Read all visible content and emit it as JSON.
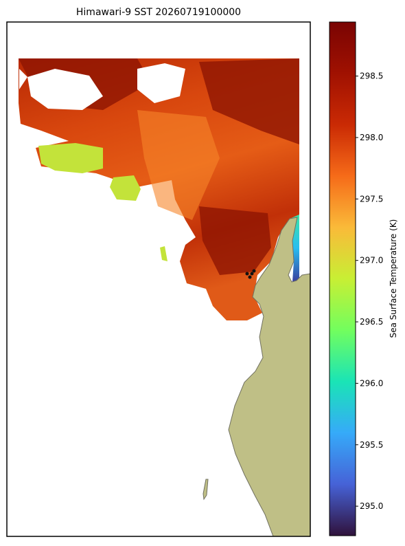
{
  "title": "Himawari-9 SST 20260719100000",
  "colorbar": {
    "label": "Sea Surface Temperature (K)",
    "lim": [
      294.76,
      298.94
    ],
    "ticks": [
      {
        "value": 295.0,
        "label": "295.0"
      },
      {
        "value": 295.5,
        "label": "295.5"
      },
      {
        "value": 296.0,
        "label": "296.0"
      },
      {
        "value": 296.5,
        "label": "296.5"
      },
      {
        "value": 297.0,
        "label": "297.0"
      },
      {
        "value": 297.5,
        "label": "297.5"
      },
      {
        "value": 298.0,
        "label": "298.0"
      },
      {
        "value": 298.5,
        "label": "298.5"
      }
    ]
  }
}
